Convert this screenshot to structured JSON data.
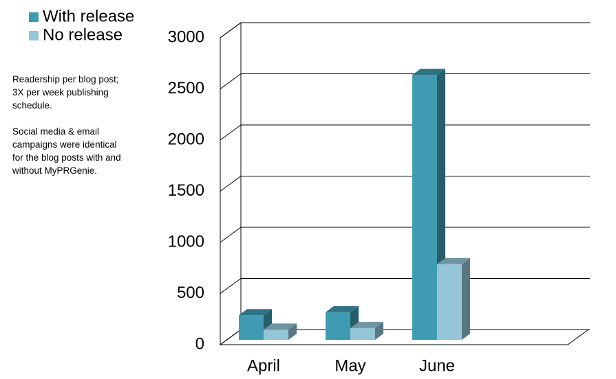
{
  "chart_data": {
    "type": "bar3d",
    "categories": [
      "April",
      "May",
      "June"
    ],
    "series": [
      {
        "name": "With release",
        "color": "#3f9bb2",
        "values": [
          240,
          270,
          2590
        ]
      },
      {
        "name": "No release",
        "color": "#94c6d8",
        "values": [
          100,
          115,
          740
        ]
      }
    ],
    "ylim": [
      0,
      3000
    ],
    "yticks": [
      0,
      500,
      1000,
      1500,
      2000,
      2500,
      3000
    ],
    "grid": true,
    "legend": "top-left",
    "annotations": [
      "Readership per blog post; 3X per week publishing schedule.",
      "Social media & email campaigns were identical for the blog posts with and without MyPRGenie."
    ]
  }
}
